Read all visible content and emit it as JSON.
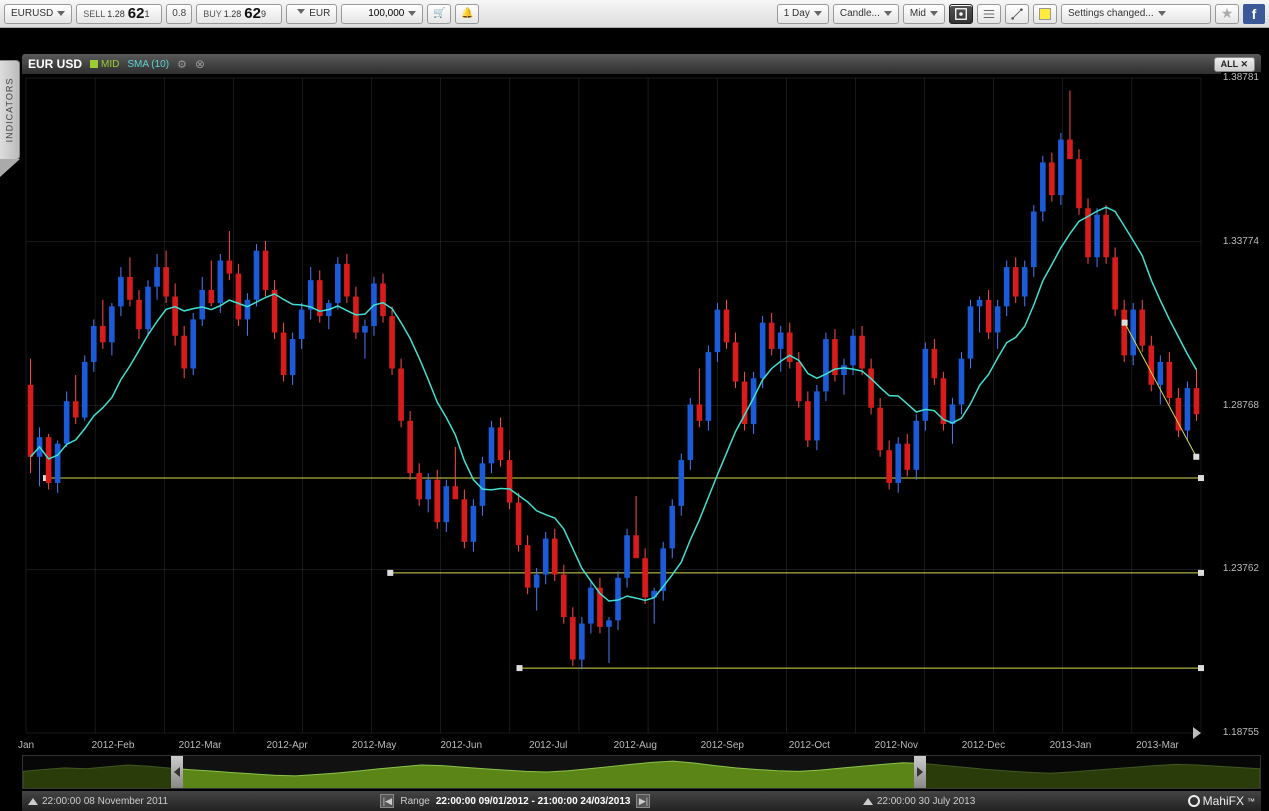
{
  "toolbar": {
    "pair": "EURUSD",
    "sell": {
      "label": "SELL",
      "pre": "1.28",
      "big": "62",
      "sup": "1"
    },
    "spread": "0.8",
    "buy": {
      "label": "BUY",
      "pre": "1.28",
      "big": "62",
      "sup": "9"
    },
    "currency": "EUR",
    "amount": "100,000",
    "timeframe": "1 Day",
    "chartType": "Candle...",
    "priceType": "Mid",
    "settings": "Settings changed..."
  },
  "sideTab": "INDICATORS",
  "chartHeader": {
    "pair": "EUR USD",
    "mid": "MID",
    "sma": "SMA (10)",
    "all": "ALL ✕"
  },
  "chart": {
    "type": "candlestick+sma",
    "background": "#000000",
    "grid_color": "#333333",
    "up_color": "#1b5bd8",
    "down_color": "#d81b1b",
    "wick_up": "#4a7bff",
    "wick_down": "#ff4a4a",
    "sma_color": "#40e0d0",
    "hline_color": "#d8d84a",
    "yaxis": {
      "min": 1.18755,
      "max": 1.38781,
      "ticks": [
        1.18755,
        1.23762,
        1.28768,
        1.33774,
        1.38781
      ]
    },
    "xaxis": {
      "labels": [
        "Jan",
        "2012-Feb",
        "2012-Mar",
        "2012-Apr",
        "2012-May",
        "2012-Jun",
        "2012-Jul",
        "2012-Aug",
        "2012-Sep",
        "2012-Oct",
        "2012-Nov",
        "2012-Dec",
        "2013-Jan",
        "2013-Mar"
      ]
    },
    "hlines": [
      1.2655,
      1.2365,
      1.2074
    ],
    "candles": [
      [
        1.294,
        1.302,
        1.267,
        1.272,
        -1
      ],
      [
        1.272,
        1.281,
        1.263,
        1.278,
        1
      ],
      [
        1.278,
        1.279,
        1.262,
        1.264,
        -1
      ],
      [
        1.264,
        1.277,
        1.261,
        1.276,
        1
      ],
      [
        1.276,
        1.292,
        1.275,
        1.289,
        1
      ],
      [
        1.289,
        1.297,
        1.282,
        1.284,
        -1
      ],
      [
        1.284,
        1.303,
        1.283,
        1.301,
        1
      ],
      [
        1.301,
        1.314,
        1.298,
        1.312,
        1
      ],
      [
        1.312,
        1.32,
        1.305,
        1.307,
        -1
      ],
      [
        1.307,
        1.319,
        1.303,
        1.318,
        1
      ],
      [
        1.318,
        1.33,
        1.315,
        1.327,
        1
      ],
      [
        1.327,
        1.333,
        1.318,
        1.32,
        -1
      ],
      [
        1.32,
        1.323,
        1.308,
        1.311,
        -1
      ],
      [
        1.311,
        1.326,
        1.309,
        1.324,
        1
      ],
      [
        1.324,
        1.334,
        1.32,
        1.33,
        1
      ],
      [
        1.33,
        1.335,
        1.319,
        1.321,
        -1
      ],
      [
        1.321,
        1.325,
        1.306,
        1.309,
        -1
      ],
      [
        1.309,
        1.312,
        1.296,
        1.299,
        -1
      ],
      [
        1.299,
        1.316,
        1.297,
        1.314,
        1
      ],
      [
        1.314,
        1.327,
        1.312,
        1.323,
        1
      ],
      [
        1.323,
        1.332,
        1.318,
        1.319,
        -1
      ],
      [
        1.319,
        1.334,
        1.316,
        1.332,
        1
      ],
      [
        1.332,
        1.341,
        1.326,
        1.328,
        -1
      ],
      [
        1.328,
        1.331,
        1.312,
        1.314,
        -1
      ],
      [
        1.314,
        1.322,
        1.309,
        1.32,
        1
      ],
      [
        1.32,
        1.337,
        1.318,
        1.335,
        1
      ],
      [
        1.335,
        1.338,
        1.321,
        1.323,
        -1
      ],
      [
        1.323,
        1.326,
        1.308,
        1.31,
        -1
      ],
      [
        1.31,
        1.313,
        1.295,
        1.297,
        -1
      ],
      [
        1.297,
        1.31,
        1.294,
        1.308,
        1
      ],
      [
        1.308,
        1.319,
        1.305,
        1.317,
        1
      ],
      [
        1.317,
        1.33,
        1.314,
        1.326,
        1
      ],
      [
        1.326,
        1.329,
        1.313,
        1.315,
        -1
      ],
      [
        1.315,
        1.32,
        1.311,
        1.319,
        1
      ],
      [
        1.319,
        1.333,
        1.317,
        1.331,
        1
      ],
      [
        1.331,
        1.334,
        1.319,
        1.321,
        -1
      ],
      [
        1.321,
        1.324,
        1.308,
        1.31,
        -1
      ],
      [
        1.31,
        1.314,
        1.302,
        1.312,
        1
      ],
      [
        1.312,
        1.327,
        1.309,
        1.325,
        1
      ],
      [
        1.325,
        1.328,
        1.313,
        1.315,
        -1
      ],
      [
        1.315,
        1.318,
        1.297,
        1.299,
        -1
      ],
      [
        1.299,
        1.302,
        1.281,
        1.283,
        -1
      ],
      [
        1.283,
        1.286,
        1.265,
        1.267,
        -1
      ],
      [
        1.267,
        1.27,
        1.257,
        1.259,
        -1
      ],
      [
        1.259,
        1.267,
        1.255,
        1.265,
        1
      ],
      [
        1.265,
        1.268,
        1.25,
        1.252,
        -1
      ],
      [
        1.252,
        1.265,
        1.249,
        1.263,
        1
      ],
      [
        1.263,
        1.275,
        1.26,
        1.259,
        -1
      ],
      [
        1.259,
        1.262,
        1.244,
        1.246,
        -1
      ],
      [
        1.246,
        1.259,
        1.243,
        1.257,
        1
      ],
      [
        1.257,
        1.272,
        1.254,
        1.27,
        1
      ],
      [
        1.27,
        1.283,
        1.267,
        1.281,
        1
      ],
      [
        1.281,
        1.284,
        1.269,
        1.271,
        -1
      ],
      [
        1.271,
        1.274,
        1.256,
        1.258,
        -1
      ],
      [
        1.258,
        1.261,
        1.243,
        1.245,
        -1
      ],
      [
        1.245,
        1.248,
        1.23,
        1.232,
        -1
      ],
      [
        1.232,
        1.238,
        1.225,
        1.236,
        1
      ],
      [
        1.236,
        1.249,
        1.233,
        1.247,
        1
      ],
      [
        1.247,
        1.25,
        1.234,
        1.236,
        -1
      ],
      [
        1.236,
        1.239,
        1.221,
        1.223,
        -1
      ],
      [
        1.223,
        1.226,
        1.208,
        1.21,
        -1
      ],
      [
        1.21,
        1.223,
        1.207,
        1.221,
        1
      ],
      [
        1.221,
        1.234,
        1.218,
        1.232,
        1
      ],
      [
        1.232,
        1.235,
        1.218,
        1.22,
        -1
      ],
      [
        1.22,
        1.223,
        1.209,
        1.222,
        1
      ],
      [
        1.222,
        1.237,
        1.219,
        1.235,
        1
      ],
      [
        1.235,
        1.25,
        1.232,
        1.248,
        1
      ],
      [
        1.248,
        1.26,
        1.244,
        1.241,
        -1
      ],
      [
        1.241,
        1.244,
        1.227,
        1.229,
        -1
      ],
      [
        1.229,
        1.232,
        1.221,
        1.231,
        1
      ],
      [
        1.231,
        1.246,
        1.228,
        1.244,
        1
      ],
      [
        1.244,
        1.259,
        1.241,
        1.257,
        1
      ],
      [
        1.257,
        1.273,
        1.254,
        1.271,
        1
      ],
      [
        1.271,
        1.29,
        1.268,
        1.288,
        1
      ],
      [
        1.288,
        1.299,
        1.281,
        1.283,
        -1
      ],
      [
        1.283,
        1.306,
        1.28,
        1.304,
        1
      ],
      [
        1.304,
        1.319,
        1.301,
        1.317,
        1
      ],
      [
        1.317,
        1.32,
        1.305,
        1.307,
        -1
      ],
      [
        1.307,
        1.31,
        1.293,
        1.295,
        -1
      ],
      [
        1.295,
        1.298,
        1.28,
        1.282,
        -1
      ],
      [
        1.282,
        1.298,
        1.279,
        1.296,
        1
      ],
      [
        1.296,
        1.315,
        1.293,
        1.313,
        1
      ],
      [
        1.313,
        1.316,
        1.303,
        1.305,
        -1
      ],
      [
        1.305,
        1.312,
        1.298,
        1.31,
        1
      ],
      [
        1.31,
        1.313,
        1.299,
        1.301,
        -1
      ],
      [
        1.301,
        1.304,
        1.287,
        1.289,
        -1
      ],
      [
        1.289,
        1.292,
        1.275,
        1.277,
        -1
      ],
      [
        1.277,
        1.294,
        1.274,
        1.292,
        1
      ],
      [
        1.292,
        1.31,
        1.289,
        1.308,
        1
      ],
      [
        1.308,
        1.311,
        1.295,
        1.297,
        -1
      ],
      [
        1.297,
        1.302,
        1.291,
        1.3,
        1
      ],
      [
        1.3,
        1.311,
        1.297,
        1.309,
        1
      ],
      [
        1.309,
        1.312,
        1.297,
        1.299,
        -1
      ],
      [
        1.299,
        1.302,
        1.285,
        1.287,
        -1
      ],
      [
        1.287,
        1.29,
        1.272,
        1.274,
        -1
      ],
      [
        1.274,
        1.277,
        1.262,
        1.264,
        -1
      ],
      [
        1.264,
        1.278,
        1.261,
        1.276,
        1
      ],
      [
        1.276,
        1.279,
        1.266,
        1.268,
        -1
      ],
      [
        1.268,
        1.285,
        1.265,
        1.283,
        1
      ],
      [
        1.283,
        1.307,
        1.28,
        1.305,
        1
      ],
      [
        1.305,
        1.308,
        1.294,
        1.296,
        -1
      ],
      [
        1.296,
        1.298,
        1.28,
        1.282,
        -1
      ],
      [
        1.282,
        1.29,
        1.276,
        1.288,
        1
      ],
      [
        1.288,
        1.304,
        1.285,
        1.302,
        1
      ],
      [
        1.302,
        1.32,
        1.299,
        1.318,
        1
      ],
      [
        1.318,
        1.321,
        1.31,
        1.32,
        1
      ],
      [
        1.32,
        1.323,
        1.308,
        1.31,
        -1
      ],
      [
        1.31,
        1.32,
        1.305,
        1.318,
        1
      ],
      [
        1.318,
        1.332,
        1.315,
        1.33,
        1
      ],
      [
        1.33,
        1.333,
        1.319,
        1.321,
        -1
      ],
      [
        1.321,
        1.332,
        1.318,
        1.33,
        1
      ],
      [
        1.33,
        1.349,
        1.327,
        1.347,
        1
      ],
      [
        1.347,
        1.364,
        1.344,
        1.362,
        1
      ],
      [
        1.362,
        1.365,
        1.35,
        1.352,
        -1
      ],
      [
        1.352,
        1.371,
        1.349,
        1.369,
        1
      ],
      [
        1.369,
        1.384,
        1.366,
        1.363,
        -1
      ],
      [
        1.363,
        1.366,
        1.346,
        1.348,
        -1
      ],
      [
        1.348,
        1.351,
        1.331,
        1.333,
        -1
      ],
      [
        1.333,
        1.348,
        1.33,
        1.346,
        1
      ],
      [
        1.346,
        1.349,
        1.331,
        1.333,
        -1
      ],
      [
        1.333,
        1.336,
        1.315,
        1.317,
        -1
      ],
      [
        1.317,
        1.32,
        1.301,
        1.303,
        -1
      ],
      [
        1.303,
        1.319,
        1.3,
        1.317,
        1
      ],
      [
        1.317,
        1.32,
        1.304,
        1.306,
        -1
      ],
      [
        1.306,
        1.309,
        1.292,
        1.294,
        -1
      ],
      [
        1.294,
        1.303,
        1.288,
        1.301,
        1
      ],
      [
        1.301,
        1.304,
        1.288,
        1.29,
        -1
      ],
      [
        1.29,
        1.293,
        1.278,
        1.28,
        -1
      ],
      [
        1.28,
        1.295,
        1.277,
        1.293,
        1
      ],
      [
        1.293,
        1.299,
        1.283,
        1.285,
        -1
      ]
    ]
  },
  "overview": {
    "area_color": "#6a9a1a",
    "line_color": "#8bc34a",
    "series": [
      0.52,
      0.58,
      0.63,
      0.6,
      0.66,
      0.72,
      0.68,
      0.62,
      0.57,
      0.53,
      0.48,
      0.44,
      0.4,
      0.38,
      0.42,
      0.47,
      0.53,
      0.6,
      0.66,
      0.72,
      0.7,
      0.65,
      0.6,
      0.56,
      0.52,
      0.5,
      0.54,
      0.6,
      0.67,
      0.74,
      0.8,
      0.84,
      0.78,
      0.7,
      0.63,
      0.58,
      0.54,
      0.52,
      0.56,
      0.62,
      0.68,
      0.74,
      0.79,
      0.76,
      0.7,
      0.64,
      0.58,
      0.53,
      0.49,
      0.46,
      0.5,
      0.55,
      0.6,
      0.65,
      0.7,
      0.74,
      0.72,
      0.68,
      0.64,
      0.6
    ]
  },
  "footer": {
    "start": "22:00:00 08 November 2011",
    "range_label": "Range",
    "range": "22:00:00 09/01/2012 - 21:00:00 24/03/2013",
    "end": "22:00:00 30 July 2013",
    "brand": "MahiFX"
  }
}
